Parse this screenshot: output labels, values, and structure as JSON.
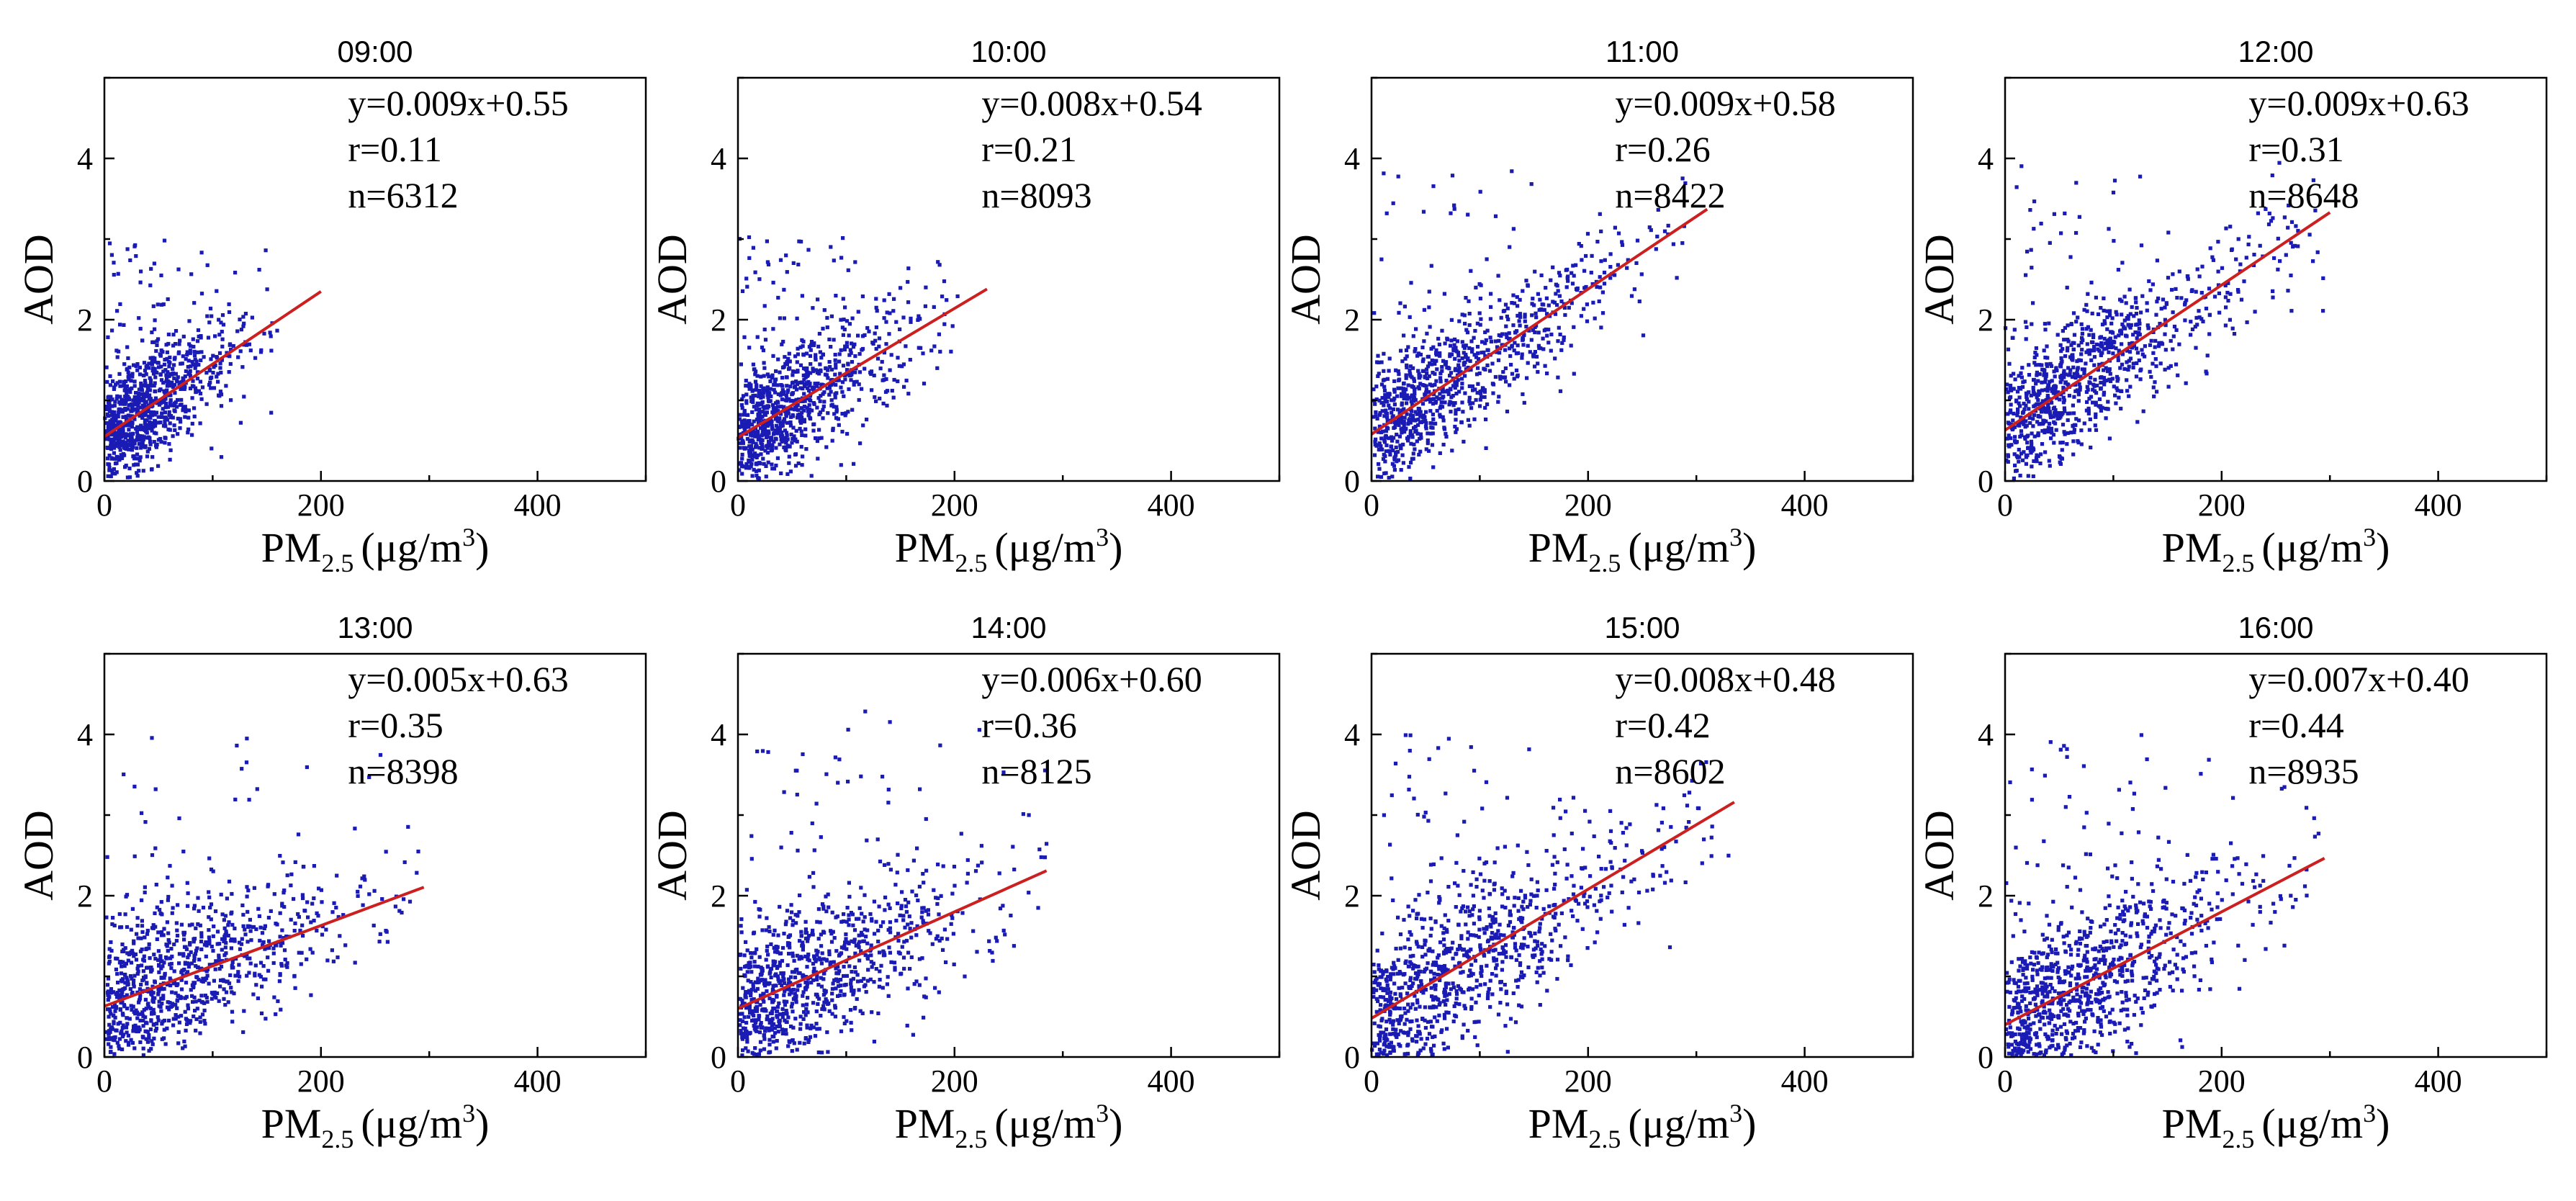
{
  "chart_data": [
    {
      "type": "scatter",
      "title": "09:00",
      "xlabel": "PM",
      "xlabel_sub": "2.5",
      "xlabel_unit": "(μg/m",
      "xlabel_sup": "3",
      "xlabel_close": ")",
      "ylabel": "AOD",
      "xlim": [
        0,
        500
      ],
      "ylim": [
        0,
        5
      ],
      "xticks": [
        "0",
        "200",
        "400"
      ],
      "yticks": [
        "0",
        "2",
        "4"
      ],
      "fit": {
        "slope": 0.009,
        "intercept": 0.55,
        "x_max": 200
      },
      "equation": "y=0.009x+0.55",
      "r": "r=0.11",
      "n": "n=6312",
      "x_extent": 160,
      "y_top": 3.0
    },
    {
      "type": "scatter",
      "title": "10:00",
      "xlabel": "PM",
      "xlabel_sub": "2.5",
      "xlabel_unit": "(μg/m",
      "xlabel_sup": "3",
      "xlabel_close": ")",
      "ylabel": "AOD",
      "xlim": [
        0,
        500
      ],
      "ylim": [
        0,
        5
      ],
      "xticks": [
        "0",
        "200",
        "400"
      ],
      "yticks": [
        "0",
        "2",
        "4"
      ],
      "fit": {
        "slope": 0.008,
        "intercept": 0.54,
        "x_max": 230
      },
      "equation": "y=0.008x+0.54",
      "r": "r=0.21",
      "n": "n=8093",
      "x_extent": 210,
      "y_top": 3.05
    },
    {
      "type": "scatter",
      "title": "11:00",
      "xlabel": "PM",
      "xlabel_sub": "2.5",
      "xlabel_unit": "(μg/m",
      "xlabel_sup": "3",
      "xlabel_close": ")",
      "ylabel": "AOD",
      "xlim": [
        0,
        500
      ],
      "ylim": [
        0,
        5
      ],
      "xticks": [
        "0",
        "200",
        "400"
      ],
      "yticks": [
        "0",
        "2",
        "4"
      ],
      "fit": {
        "slope": 0.009,
        "intercept": 0.58,
        "x_max": 310
      },
      "equation": "y=0.009x+0.58",
      "r": "r=0.26",
      "n": "n=8422",
      "x_extent": 300,
      "y_top": 3.85
    },
    {
      "type": "scatter",
      "title": "12:00",
      "xlabel": "PM",
      "xlabel_sub": "2.5",
      "xlabel_unit": "(μg/m",
      "xlabel_sup": "3",
      "xlabel_close": ")",
      "ylabel": "AOD",
      "xlim": [
        0,
        500
      ],
      "ylim": [
        0,
        5
      ],
      "xticks": [
        "0",
        "200",
        "400"
      ],
      "yticks": [
        "0",
        "2",
        "4"
      ],
      "fit": {
        "slope": 0.009,
        "intercept": 0.63,
        "x_max": 300
      },
      "equation": "y=0.009x+0.63",
      "r": "r=0.31",
      "n": "n=8648",
      "x_extent": 295,
      "y_top": 3.95
    },
    {
      "type": "scatter",
      "title": "13:00",
      "xlabel": "PM",
      "xlabel_sub": "2.5",
      "xlabel_unit": "(μg/m",
      "xlabel_sup": "3",
      "xlabel_close": ")",
      "ylabel": "AOD",
      "xlim": [
        0,
        500
      ],
      "ylim": [
        0,
        5
      ],
      "xticks": [
        "0",
        "200",
        "400"
      ],
      "yticks": [
        "0",
        "2",
        "4"
      ],
      "fit": {
        "slope": 0.005,
        "intercept": 0.63,
        "x_max": 295
      },
      "equation": "y=0.005x+0.63",
      "r": "r=0.35",
      "n": "n=8398",
      "x_extent": 290,
      "y_top": 4.0
    },
    {
      "type": "scatter",
      "title": "14:00",
      "xlabel": "PM",
      "xlabel_sub": "2.5",
      "xlabel_unit": "(μg/m",
      "xlabel_sup": "3",
      "xlabel_close": ")",
      "ylabel": "AOD",
      "xlim": [
        0,
        500
      ],
      "ylim": [
        0,
        5
      ],
      "xticks": [
        "0",
        "200",
        "400"
      ],
      "yticks": [
        "0",
        "2",
        "4"
      ],
      "fit": {
        "slope": 0.006,
        "intercept": 0.6,
        "x_max": 285
      },
      "equation": "y=0.006x+0.60",
      "r": "r=0.36",
      "n": "n=8125",
      "x_extent": 285,
      "y_top": 4.3
    },
    {
      "type": "scatter",
      "title": "15:00",
      "xlabel": "PM",
      "xlabel_sub": "2.5",
      "xlabel_unit": "(μg/m",
      "xlabel_sup": "3",
      "xlabel_close": ")",
      "ylabel": "AOD",
      "xlim": [
        0,
        500
      ],
      "ylim": [
        0,
        5
      ],
      "xticks": [
        "0",
        "200",
        "400"
      ],
      "yticks": [
        "0",
        "2",
        "4"
      ],
      "fit": {
        "slope": 0.008,
        "intercept": 0.48,
        "x_max": 335
      },
      "equation": "y=0.008x+0.48",
      "r": "r=0.42",
      "n": "n=8602",
      "x_extent": 330,
      "y_top": 4.0
    },
    {
      "type": "scatter",
      "title": "16:00",
      "xlabel": "PM",
      "xlabel_sub": "2.5",
      "xlabel_unit": "(μg/m",
      "xlabel_sup": "3",
      "xlabel_close": ")",
      "ylabel": "AOD",
      "xlim": [
        0,
        500
      ],
      "ylim": [
        0,
        5
      ],
      "xticks": [
        "0",
        "200",
        "400"
      ],
      "yticks": [
        "0",
        "2",
        "4"
      ],
      "fit": {
        "slope": 0.007,
        "intercept": 0.4,
        "x_max": 295
      },
      "equation": "y=0.007x+0.40",
      "r": "r=0.44",
      "n": "n=8935",
      "x_extent": 290,
      "y_top": 4.0
    }
  ],
  "colors": {
    "points": "#1a1ab4",
    "fit": "#cc1f1f",
    "axis": "#000000"
  }
}
